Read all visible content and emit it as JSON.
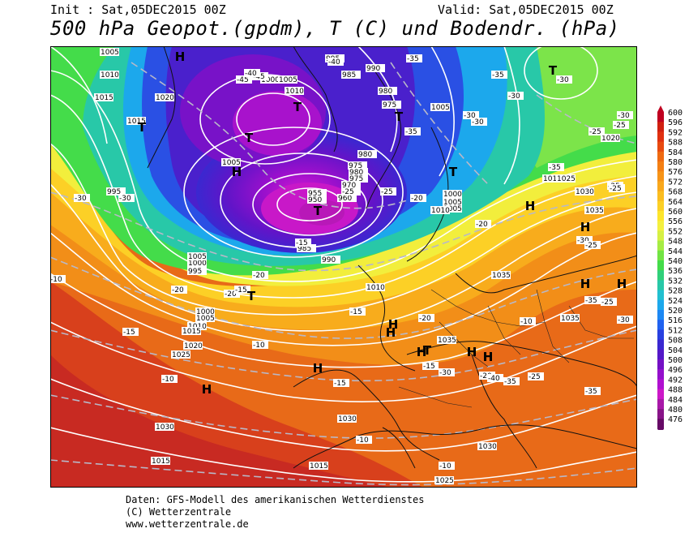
{
  "header": {
    "init": "Init : Sat,05DEC2015 00Z",
    "valid": "Valid: Sat,05DEC2015 00Z",
    "title": "500 hPa Geopot.(gpdm), T (C) und Bodendr. (hPa)"
  },
  "colorbar": {
    "levels": [
      "600",
      "596",
      "592",
      "588",
      "584",
      "580",
      "576",
      "572",
      "568",
      "564",
      "560",
      "556",
      "552",
      "548",
      "544",
      "540",
      "536",
      "532",
      "528",
      "524",
      "520",
      "516",
      "512",
      "508",
      "504",
      "500",
      "496",
      "492",
      "488",
      "484",
      "480",
      "476"
    ],
    "colors": [
      "#c00020",
      "#d02010",
      "#e03010",
      "#e84a10",
      "#ef6a12",
      "#f47f14",
      "#f79418",
      "#f9a81c",
      "#fbbd20",
      "#fcd026",
      "#fde52c",
      "#f4f040",
      "#d6f044",
      "#a6ec44",
      "#72e444",
      "#44dc4a",
      "#30d07a",
      "#28c8a8",
      "#22c0d0",
      "#1ca8ec",
      "#1c88f4",
      "#2062f0",
      "#2840e0",
      "#3a28d0",
      "#5418c8",
      "#7410c4",
      "#9410cc",
      "#b010d0",
      "#cc18c8",
      "#a818a8",
      "#881488",
      "#660a66"
    ]
  },
  "map": {
    "centers": [
      {
        "type": "H"
      },
      {
        "type": "H"
      },
      {
        "type": "H"
      },
      {
        "type": "H"
      },
      {
        "type": "H"
      },
      {
        "type": "H"
      },
      {
        "type": "H"
      },
      {
        "type": "H"
      },
      {
        "type": "H"
      },
      {
        "type": "H"
      },
      {
        "type": "H"
      },
      {
        "type": "H"
      },
      {
        "type": "H"
      },
      {
        "type": "H"
      },
      {
        "type": "H"
      },
      {
        "type": "T"
      },
      {
        "type": "T"
      },
      {
        "type": "T"
      },
      {
        "type": "T"
      },
      {
        "type": "T"
      },
      {
        "type": "T"
      },
      {
        "type": "T"
      },
      {
        "type": "T"
      },
      {
        "type": "T"
      }
    ],
    "pressure_labels": [
      "1005",
      "1010",
      "1015",
      "1020",
      "1015",
      "1005",
      "995",
      "990",
      "985",
      "980",
      "975",
      "995",
      "1000",
      "1005",
      "1010",
      "980",
      "975",
      "980",
      "975",
      "970",
      "965",
      "960",
      "955",
      "950",
      "985",
      "990",
      "1000",
      "1005",
      "1005",
      "1010",
      "1015",
      "1020",
      "1025",
      "1030",
      "1035",
      "1035",
      "1035",
      "1035",
      "1000",
      "995",
      "1005",
      "1000",
      "1005",
      "1010",
      "1015",
      "1020",
      "1025",
      "1030",
      "1030",
      "1030",
      "1025",
      "1015",
      "1015",
      "1005",
      "1010"
    ],
    "temp_labels": [
      "-45",
      "-45",
      "-40",
      "-40",
      "-35",
      "-35",
      "-35",
      "-30",
      "-30",
      "-30",
      "-30",
      "-30",
      "-30",
      "-25",
      "-25",
      "-25",
      "-25",
      "-25",
      "-25",
      "-20",
      "-20",
      "-20",
      "-20",
      "-20",
      "-15",
      "-15",
      "-15",
      "-15",
      "-10",
      "-10",
      "-10",
      "-10",
      "-10",
      "-10",
      "-15",
      "-30",
      "-35",
      "-40",
      "-35",
      "-35",
      "-30",
      "-25",
      "-25",
      "-20",
      "-15",
      "-30",
      "-25",
      "-35",
      "-30",
      "-25",
      "-20"
    ]
  },
  "credits": {
    "line1": "Daten: GFS-Modell des amerikanischen Wetterdienstes",
    "line2": "(C) Wetterzentrale",
    "line3": "www.wetterzentrale.de"
  }
}
